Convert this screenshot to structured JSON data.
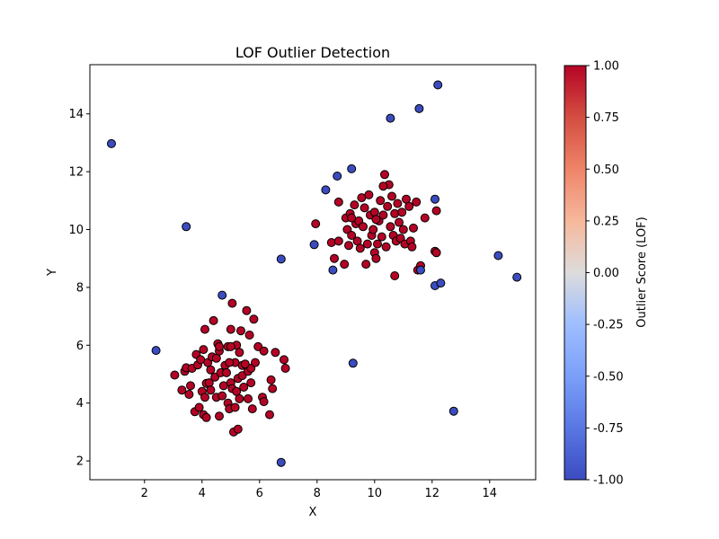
{
  "chart_data": {
    "type": "scatter",
    "title": "LOF Outlier Detection",
    "xlabel": "X",
    "ylabel": "Y",
    "xlim": [
      0.1,
      15.6
    ],
    "ylim": [
      1.35,
      15.7
    ],
    "xticks": [
      2,
      4,
      6,
      8,
      10,
      12,
      14
    ],
    "yticks": [
      2,
      4,
      6,
      8,
      10,
      12,
      14
    ],
    "grid": false,
    "colorbar": {
      "label": "Outlier Score (LOF)",
      "range": [
        -1.0,
        1.0
      ],
      "ticks": [
        "-1.00",
        "-0.75",
        "-0.50",
        "-0.25",
        "0.00",
        "0.25",
        "0.50",
        "0.75",
        "1.00"
      ],
      "colormap": "coolwarm",
      "low_color": "#3b4cc0",
      "high_color": "#b40426"
    },
    "outliers": {
      "score": -1,
      "points": [
        [
          0.85,
          12.97
        ],
        [
          3.45,
          10.1
        ],
        [
          2.4,
          5.82
        ],
        [
          4.7,
          7.73
        ],
        [
          6.75,
          8.98
        ],
        [
          6.75,
          1.95
        ],
        [
          8.3,
          11.37
        ],
        [
          8.7,
          11.85
        ],
        [
          9.2,
          12.1
        ],
        [
          7.9,
          9.48
        ],
        [
          8.55,
          8.6
        ],
        [
          9.25,
          5.38
        ],
        [
          10.55,
          13.85
        ],
        [
          11.55,
          14.18
        ],
        [
          12.2,
          15.0
        ],
        [
          12.1,
          11.05
        ],
        [
          11.6,
          8.6
        ],
        [
          12.1,
          8.06
        ],
        [
          12.3,
          8.15
        ],
        [
          12.75,
          3.72
        ],
        [
          14.3,
          9.1
        ],
        [
          14.95,
          8.35
        ]
      ]
    },
    "inliers": {
      "score": 1,
      "points": [
        [
          3.05,
          4.97
        ],
        [
          3.3,
          4.45
        ],
        [
          3.4,
          5.1
        ],
        [
          3.45,
          5.22
        ],
        [
          3.55,
          4.3
        ],
        [
          3.6,
          4.6
        ],
        [
          3.65,
          5.2
        ],
        [
          3.75,
          3.7
        ],
        [
          3.8,
          5.68
        ],
        [
          3.85,
          5.32
        ],
        [
          3.9,
          3.85
        ],
        [
          3.95,
          5.5
        ],
        [
          4.0,
          4.4
        ],
        [
          4.05,
          5.85
        ],
        [
          4.05,
          3.6
        ],
        [
          4.1,
          4.2
        ],
        [
          4.1,
          6.55
        ],
        [
          4.15,
          4.68
        ],
        [
          4.15,
          3.5
        ],
        [
          4.2,
          5.4
        ],
        [
          4.25,
          4.7
        ],
        [
          4.3,
          5.15
        ],
        [
          4.35,
          5.6
        ],
        [
          4.4,
          6.85
        ],
        [
          4.45,
          4.9
        ],
        [
          4.5,
          5.55
        ],
        [
          4.5,
          4.2
        ],
        [
          4.55,
          6.05
        ],
        [
          4.6,
          5.8
        ],
        [
          4.6,
          3.55
        ],
        [
          4.65,
          5.05
        ],
        [
          4.7,
          4.25
        ],
        [
          4.75,
          4.6
        ],
        [
          4.8,
          5.3
        ],
        [
          4.85,
          5.05
        ],
        [
          4.9,
          4.0
        ],
        [
          4.9,
          5.95
        ],
        [
          4.95,
          3.8
        ],
        [
          5.0,
          4.7
        ],
        [
          5.0,
          6.55
        ],
        [
          5.05,
          7.45
        ],
        [
          5.05,
          4.5
        ],
        [
          5.1,
          3.0
        ],
        [
          5.15,
          5.4
        ],
        [
          5.15,
          3.85
        ],
        [
          5.2,
          6.0
        ],
        [
          5.2,
          4.4
        ],
        [
          5.25,
          4.85
        ],
        [
          5.25,
          3.1
        ],
        [
          5.3,
          5.75
        ],
        [
          5.3,
          4.15
        ],
        [
          5.35,
          6.5
        ],
        [
          5.4,
          4.95
        ],
        [
          5.4,
          5.3
        ],
        [
          5.45,
          4.55
        ],
        [
          5.55,
          7.2
        ],
        [
          5.6,
          4.15
        ],
        [
          5.6,
          5.1
        ],
        [
          5.65,
          6.35
        ],
        [
          5.7,
          5.2
        ],
        [
          5.7,
          4.7
        ],
        [
          5.75,
          3.8
        ],
        [
          5.8,
          6.9
        ],
        [
          5.85,
          5.4
        ],
        [
          5.95,
          5.95
        ],
        [
          6.1,
          4.2
        ],
        [
          6.15,
          5.8
        ],
        [
          6.15,
          4.05
        ],
        [
          6.35,
          3.6
        ],
        [
          6.4,
          4.8
        ],
        [
          6.45,
          4.5
        ],
        [
          6.55,
          5.75
        ],
        [
          6.85,
          5.5
        ],
        [
          6.9,
          5.2
        ],
        [
          4.95,
          5.4
        ],
        [
          5.5,
          5.35
        ],
        [
          4.3,
          4.45
        ],
        [
          5.0,
          5.95
        ],
        [
          4.6,
          5.95
        ],
        [
          7.95,
          10.2
        ],
        [
          8.5,
          9.55
        ],
        [
          8.6,
          9.0
        ],
        [
          8.75,
          10.95
        ],
        [
          8.75,
          9.6
        ],
        [
          8.95,
          8.8
        ],
        [
          9.0,
          10.4
        ],
        [
          9.05,
          10.0
        ],
        [
          9.1,
          9.45
        ],
        [
          9.15,
          10.55
        ],
        [
          9.2,
          9.8
        ],
        [
          9.3,
          10.85
        ],
        [
          9.35,
          10.2
        ],
        [
          9.4,
          9.6
        ],
        [
          9.45,
          10.3
        ],
        [
          9.5,
          9.35
        ],
        [
          9.55,
          11.1
        ],
        [
          9.6,
          10.1
        ],
        [
          9.65,
          10.75
        ],
        [
          9.7,
          8.8
        ],
        [
          9.75,
          9.5
        ],
        [
          9.8,
          11.2
        ],
        [
          9.85,
          10.5
        ],
        [
          9.9,
          9.8
        ],
        [
          9.95,
          10.0
        ],
        [
          10.0,
          9.2
        ],
        [
          10.0,
          10.6
        ],
        [
          10.05,
          9.0
        ],
        [
          10.1,
          9.5
        ],
        [
          10.15,
          10.3
        ],
        [
          10.2,
          11.0
        ],
        [
          10.25,
          9.75
        ],
        [
          10.3,
          10.5
        ],
        [
          10.35,
          11.9
        ],
        [
          10.4,
          9.4
        ],
        [
          10.45,
          10.8
        ],
        [
          10.5,
          11.55
        ],
        [
          10.55,
          10.1
        ],
        [
          10.6,
          11.15
        ],
        [
          10.65,
          9.8
        ],
        [
          10.7,
          10.55
        ],
        [
          10.7,
          8.4
        ],
        [
          10.75,
          9.6
        ],
        [
          10.8,
          10.9
        ],
        [
          10.85,
          10.25
        ],
        [
          10.9,
          9.7
        ],
        [
          10.95,
          10.6
        ],
        [
          11.0,
          10.0
        ],
        [
          11.05,
          9.5
        ],
        [
          11.1,
          11.05
        ],
        [
          11.2,
          10.8
        ],
        [
          11.25,
          9.6
        ],
        [
          11.3,
          9.4
        ],
        [
          11.35,
          10.05
        ],
        [
          11.45,
          10.95
        ],
        [
          11.5,
          8.6
        ],
        [
          11.6,
          8.75
        ],
        [
          11.75,
          10.4
        ],
        [
          12.1,
          9.25
        ],
        [
          12.15,
          9.2
        ],
        [
          12.15,
          10.65
        ],
        [
          10.3,
          11.5
        ],
        [
          9.2,
          10.4
        ],
        [
          10.05,
          10.35
        ]
      ]
    }
  }
}
